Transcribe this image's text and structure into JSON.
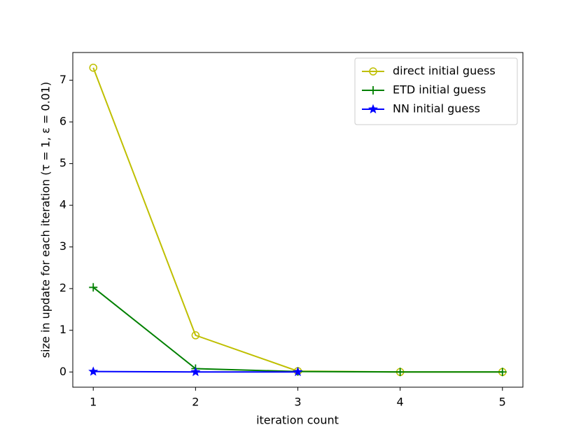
{
  "chart_data": {
    "type": "line",
    "xlabel": "iteration count",
    "ylabel": "size in update for each iteration (τ = 1, ε = 0.01)",
    "x": [
      1,
      2,
      3,
      4,
      5
    ],
    "series": [
      {
        "name": "direct initial guess",
        "color": "#bfbf00",
        "marker": "circle",
        "values": [
          7.3,
          0.88,
          0.02,
          0.0,
          0.0
        ]
      },
      {
        "name": "ETD initial guess",
        "color": "#008000",
        "marker": "plus",
        "values": [
          2.03,
          0.08,
          0.01,
          0.0,
          0.0
        ]
      },
      {
        "name": "NN initial guess",
        "color": "#0000ff",
        "marker": "star",
        "values": [
          0.01,
          0.0,
          0.0,
          null,
          null
        ]
      }
    ],
    "xlim": [
      0.8,
      5.2
    ],
    "xticks": [
      1,
      2,
      3,
      4,
      5
    ],
    "ylim": [
      -0.365,
      7.665
    ],
    "yticks": [
      0,
      1,
      2,
      3,
      4,
      5,
      6,
      7
    ],
    "grid": false,
    "legend": "upper right"
  }
}
